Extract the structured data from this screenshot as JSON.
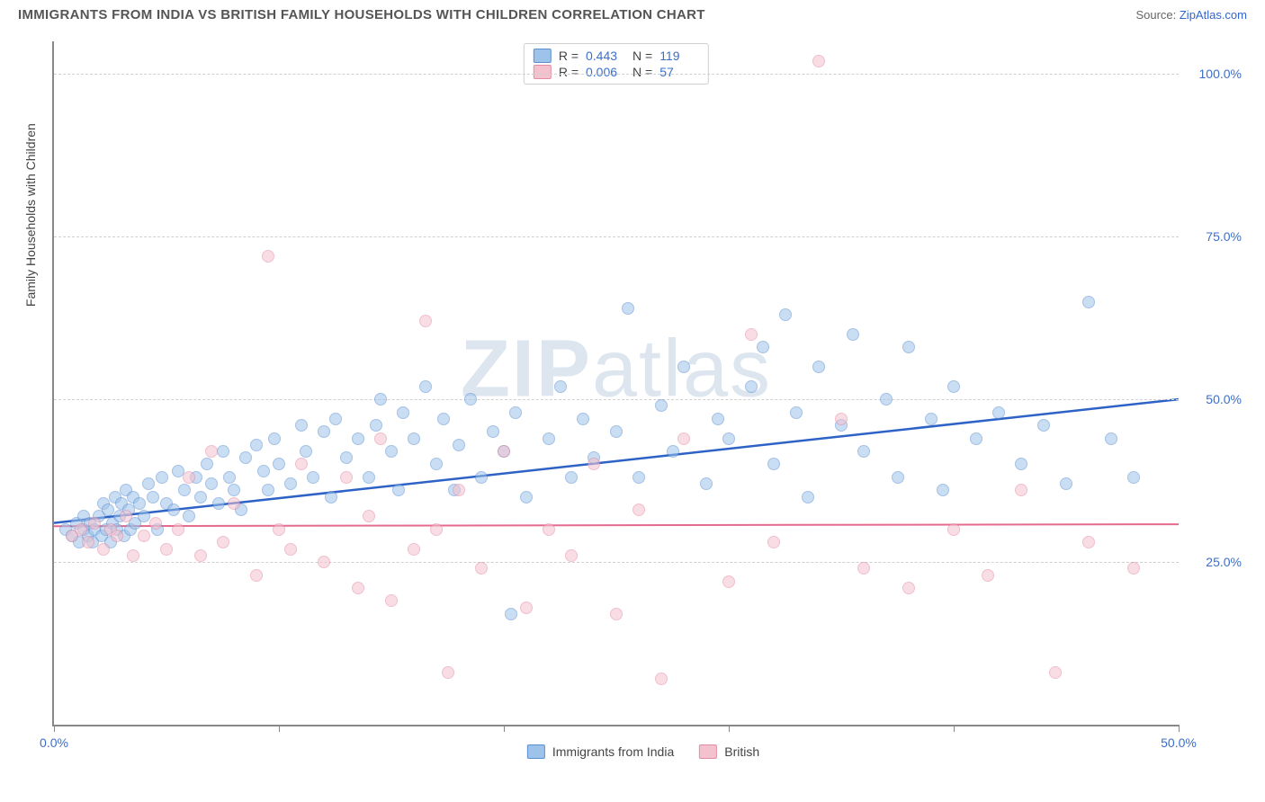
{
  "title": "IMMIGRANTS FROM INDIA VS BRITISH FAMILY HOUSEHOLDS WITH CHILDREN CORRELATION CHART",
  "source_prefix": "Source: ",
  "source_link": "ZipAtlas.com",
  "watermark_bold": "ZIP",
  "watermark_light": "atlas",
  "ylabel": "Family Households with Children",
  "chart": {
    "type": "scatter",
    "background_color": "#ffffff",
    "grid_color": "#d0d0d0",
    "axis_color": "#888888",
    "xlim": [
      0,
      50
    ],
    "ylim": [
      0,
      105
    ],
    "xticks": [
      0,
      10,
      20,
      30,
      40,
      50
    ],
    "xlabels": {
      "0": "0.0%",
      "50": "50.0%"
    },
    "yticks": [
      25,
      50,
      75,
      100
    ],
    "ylabels": {
      "25": "25.0%",
      "50": "50.0%",
      "75": "75.0%",
      "100": "100.0%"
    },
    "point_radius": 7,
    "point_opacity": 0.55,
    "series": [
      {
        "name": "Immigrants from India",
        "fill": "#9ec3ea",
        "stroke": "#5b8fd0",
        "trend_color": "#2d62c6",
        "trend_width": 2.5,
        "R": "0.443",
        "N": "119",
        "trend": {
          "y_at_x0": 31,
          "y_at_xmax": 50
        },
        "points": [
          [
            0.5,
            30
          ],
          [
            0.8,
            29
          ],
          [
            1.0,
            31
          ],
          [
            1.1,
            28
          ],
          [
            1.3,
            30
          ],
          [
            1.3,
            32
          ],
          [
            1.5,
            29
          ],
          [
            1.6,
            31
          ],
          [
            1.7,
            28
          ],
          [
            1.8,
            30
          ],
          [
            2.0,
            32
          ],
          [
            2.1,
            29
          ],
          [
            2.2,
            34
          ],
          [
            2.3,
            30
          ],
          [
            2.4,
            33
          ],
          [
            2.5,
            28
          ],
          [
            2.6,
            31
          ],
          [
            2.7,
            35
          ],
          [
            2.8,
            30
          ],
          [
            2.9,
            32
          ],
          [
            3.0,
            34
          ],
          [
            3.1,
            29
          ],
          [
            3.2,
            36
          ],
          [
            3.3,
            33
          ],
          [
            3.4,
            30
          ],
          [
            3.5,
            35
          ],
          [
            3.6,
            31
          ],
          [
            3.8,
            34
          ],
          [
            4.0,
            32
          ],
          [
            4.2,
            37
          ],
          [
            4.4,
            35
          ],
          [
            4.6,
            30
          ],
          [
            4.8,
            38
          ],
          [
            5.0,
            34
          ],
          [
            5.3,
            33
          ],
          [
            5.5,
            39
          ],
          [
            5.8,
            36
          ],
          [
            6.0,
            32
          ],
          [
            6.3,
            38
          ],
          [
            6.5,
            35
          ],
          [
            6.8,
            40
          ],
          [
            7.0,
            37
          ],
          [
            7.3,
            34
          ],
          [
            7.5,
            42
          ],
          [
            7.8,
            38
          ],
          [
            8.0,
            36
          ],
          [
            8.3,
            33
          ],
          [
            8.5,
            41
          ],
          [
            9.0,
            43
          ],
          [
            9.3,
            39
          ],
          [
            9.5,
            36
          ],
          [
            9.8,
            44
          ],
          [
            10.0,
            40
          ],
          [
            10.5,
            37
          ],
          [
            11.0,
            46
          ],
          [
            11.2,
            42
          ],
          [
            11.5,
            38
          ],
          [
            12.0,
            45
          ],
          [
            12.3,
            35
          ],
          [
            12.5,
            47
          ],
          [
            13.0,
            41
          ],
          [
            13.5,
            44
          ],
          [
            14.0,
            38
          ],
          [
            14.3,
            46
          ],
          [
            14.5,
            50
          ],
          [
            15.0,
            42
          ],
          [
            15.3,
            36
          ],
          [
            15.5,
            48
          ],
          [
            16.0,
            44
          ],
          [
            16.5,
            52
          ],
          [
            17.0,
            40
          ],
          [
            17.3,
            47
          ],
          [
            17.8,
            36
          ],
          [
            18.0,
            43
          ],
          [
            18.5,
            50
          ],
          [
            19.0,
            38
          ],
          [
            19.5,
            45
          ],
          [
            20.0,
            42
          ],
          [
            20.3,
            17
          ],
          [
            20.5,
            48
          ],
          [
            21.0,
            35
          ],
          [
            22.0,
            44
          ],
          [
            22.5,
            52
          ],
          [
            23.0,
            38
          ],
          [
            23.5,
            47
          ],
          [
            24.0,
            41
          ],
          [
            25.0,
            45
          ],
          [
            25.5,
            64
          ],
          [
            26.0,
            38
          ],
          [
            27.0,
            49
          ],
          [
            27.5,
            42
          ],
          [
            28.0,
            55
          ],
          [
            29.0,
            37
          ],
          [
            29.5,
            47
          ],
          [
            30.0,
            44
          ],
          [
            31.0,
            52
          ],
          [
            31.5,
            58
          ],
          [
            32.0,
            40
          ],
          [
            32.5,
            63
          ],
          [
            33.0,
            48
          ],
          [
            33.5,
            35
          ],
          [
            34.0,
            55
          ],
          [
            35.0,
            46
          ],
          [
            35.5,
            60
          ],
          [
            36.0,
            42
          ],
          [
            37.0,
            50
          ],
          [
            37.5,
            38
          ],
          [
            38.0,
            58
          ],
          [
            39.0,
            47
          ],
          [
            39.5,
            36
          ],
          [
            40.0,
            52
          ],
          [
            41.0,
            44
          ],
          [
            42.0,
            48
          ],
          [
            43.0,
            40
          ],
          [
            44.0,
            46
          ],
          [
            45.0,
            37
          ],
          [
            46.0,
            65
          ],
          [
            47.0,
            44
          ],
          [
            48.0,
            38
          ]
        ]
      },
      {
        "name": "British",
        "fill": "#f4c2cf",
        "stroke": "#e48ba4",
        "trend_color": "#e46a8e",
        "trend_width": 2,
        "R": "0.006",
        "N": "57",
        "trend": {
          "y_at_x0": 30.5,
          "y_at_xmax": 30.8
        },
        "points": [
          [
            0.8,
            29
          ],
          [
            1.2,
            30
          ],
          [
            1.5,
            28
          ],
          [
            1.8,
            31
          ],
          [
            2.2,
            27
          ],
          [
            2.5,
            30
          ],
          [
            2.8,
            29
          ],
          [
            3.2,
            32
          ],
          [
            3.5,
            26
          ],
          [
            4.0,
            29
          ],
          [
            4.5,
            31
          ],
          [
            5.0,
            27
          ],
          [
            5.5,
            30
          ],
          [
            6.0,
            38
          ],
          [
            6.5,
            26
          ],
          [
            7.0,
            42
          ],
          [
            7.5,
            28
          ],
          [
            8.0,
            34
          ],
          [
            9.0,
            23
          ],
          [
            9.5,
            72
          ],
          [
            10.0,
            30
          ],
          [
            10.5,
            27
          ],
          [
            11.0,
            40
          ],
          [
            12.0,
            25
          ],
          [
            13.0,
            38
          ],
          [
            13.5,
            21
          ],
          [
            14.0,
            32
          ],
          [
            14.5,
            44
          ],
          [
            15.0,
            19
          ],
          [
            16.0,
            27
          ],
          [
            16.5,
            62
          ],
          [
            17.0,
            30
          ],
          [
            17.5,
            8
          ],
          [
            18.0,
            36
          ],
          [
            19.0,
            24
          ],
          [
            20.0,
            42
          ],
          [
            21.0,
            18
          ],
          [
            22.0,
            30
          ],
          [
            23.0,
            26
          ],
          [
            24.0,
            40
          ],
          [
            25.0,
            17
          ],
          [
            26.0,
            33
          ],
          [
            27.0,
            7
          ],
          [
            28.0,
            44
          ],
          [
            30.0,
            22
          ],
          [
            31.0,
            60
          ],
          [
            32.0,
            28
          ],
          [
            34.0,
            102
          ],
          [
            35.0,
            47
          ],
          [
            36.0,
            24
          ],
          [
            38.0,
            21
          ],
          [
            40.0,
            30
          ],
          [
            41.5,
            23
          ],
          [
            43.0,
            36
          ],
          [
            44.5,
            8
          ],
          [
            46.0,
            28
          ],
          [
            48.0,
            24
          ]
        ]
      }
    ]
  },
  "legend_bottom": [
    {
      "label": "Immigrants from India",
      "fill": "#9ec3ea",
      "stroke": "#5b8fd0"
    },
    {
      "label": "British",
      "fill": "#f4c2cf",
      "stroke": "#e48ba4"
    }
  ]
}
